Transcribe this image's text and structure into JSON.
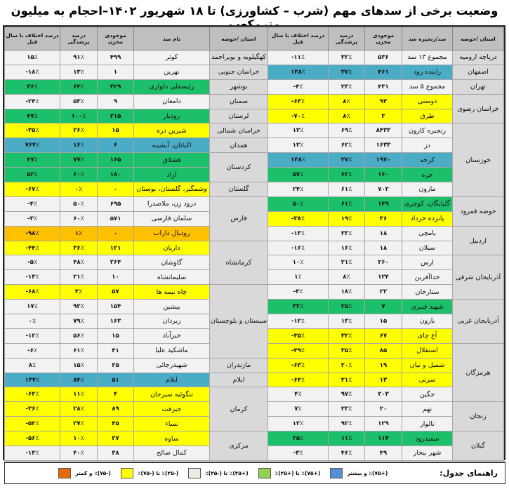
{
  "title": "وضعیت برخی از سدهای مهم (شرب – کشاورزی) تا ۱۸ شهریور ۱۴۰۲–احجام به میلیون مترمکعب",
  "colors": {
    "white": "#f2f2f2",
    "blue": "#4bacc6",
    "green": "#1cc06a",
    "yellow": "#ffff00",
    "orange": "#ffc000",
    "province": "#d9d9d9",
    "header": "#bfbfbf"
  },
  "right_table": {
    "headers": {
      "province": "استان /حوضه",
      "dam": "سد/زنجیره سد",
      "storage": "موجودی مخزن",
      "fill": "درصد پرشدگی",
      "diff": "درصد اختلاف با سال قبل"
    },
    "groups": [
      {
        "province": "دریاچه ارومیه",
        "dams": [
          {
            "name": "مجموع ۱۳ سد",
            "storage": "۵۳۶",
            "fill": "۳۲٪",
            "diff": "-۱۱٪",
            "status": "white"
          }
        ]
      },
      {
        "province": "اصفهان",
        "dams": [
          {
            "name": "زاینده رود",
            "storage": "۴۶۱",
            "fill": "۳۷٪",
            "diff": "۱۳۸٪",
            "status": "blue"
          }
        ]
      },
      {
        "province": "تهران",
        "dams": [
          {
            "name": "مجموع ۵ سد",
            "storage": "۴۳۱",
            "fill": "۲۳٪",
            "diff": "-۴٪",
            "status": "white"
          }
        ]
      },
      {
        "province": "خراسان رضوی",
        "dams": [
          {
            "name": "دوستی",
            "storage": "۹۳",
            "fill": "۸٪",
            "diff": "-۶۳٪",
            "status": "yellow"
          },
          {
            "name": "طرق",
            "storage": "۳",
            "fill": "۸٪",
            "diff": "-۷۰٪",
            "status": "yellow"
          }
        ]
      },
      {
        "province": "خوزستان",
        "dams": [
          {
            "name": "زنجیره کارون",
            "storage": "۸۴۳۳",
            "fill": "۶۹٪",
            "diff": "۱۳٪",
            "status": "white"
          },
          {
            "name": "دز",
            "storage": "۱۶۳۳",
            "fill": "۶۲٪",
            "diff": "۱۲٪",
            "status": "white"
          },
          {
            "name": "کرخه",
            "storage": "۱۹۷۰",
            "fill": "۳۷٪",
            "diff": "۱۴۸٪",
            "status": "blue"
          },
          {
            "name": "جره",
            "storage": "۱۶۰",
            "fill": "۶۲٪",
            "diff": "۵۷٪",
            "status": "green"
          },
          {
            "name": "مارون",
            "storage": "۷۰۲",
            "fill": "۶۱٪",
            "diff": "۲۴٪",
            "status": "white"
          }
        ]
      },
      {
        "province": "حوضه قمرود",
        "dams": [
          {
            "name": "گلپایگان، کوچری",
            "storage": "۱۴۹",
            "fill": "۶۱٪",
            "diff": "۵۰٪",
            "status": "green"
          },
          {
            "name": "پانزده خرداد",
            "storage": "۳۶",
            "fill": "۱۹٪",
            "diff": "-۳۸٪",
            "status": "yellow"
          }
        ]
      },
      {
        "province": "اردبیل",
        "dams": [
          {
            "name": "یامچی",
            "storage": "۱۸",
            "fill": "۲۳٪",
            "diff": "-۱۳٪",
            "status": "white"
          },
          {
            "name": "سبلان",
            "storage": "۱۸",
            "fill": "۱۶٪",
            "diff": "-۱۶٪",
            "status": "white"
          }
        ]
      },
      {
        "province": "آذربایجان شرقی",
        "dams": [
          {
            "name": "ارس",
            "storage": "۲۶۰",
            "fill": "۲۱٪",
            "diff": "۱۰٪",
            "status": "white"
          },
          {
            "name": "خداآفرین",
            "storage": "۱۲۴",
            "fill": "۸٪",
            "diff": "۱٪",
            "status": "white"
          },
          {
            "name": "ستارخان",
            "storage": "۲۲",
            "fill": "۱۸٪",
            "diff": "-۳٪",
            "status": "white"
          }
        ]
      },
      {
        "province": "آذربایجان غربی",
        "dams": [
          {
            "name": "شهید قنبری",
            "storage": "۷",
            "fill": "۲۵٪",
            "diff": "۳۲٪",
            "status": "green"
          },
          {
            "name": "بارون",
            "storage": "۱۵",
            "fill": "۱۳٪",
            "diff": "-۱۲٪",
            "status": "white"
          },
          {
            "name": "آغ چای",
            "storage": "۶۷",
            "fill": "۳۲٪",
            "diff": "-۳۵٪",
            "status": "yellow"
          }
        ]
      },
      {
        "province": "هرمزگان",
        "dams": [
          {
            "name": "استقلال",
            "storage": "۸۵",
            "fill": "۳۵٪",
            "diff": "-۴۹٪",
            "status": "yellow"
          },
          {
            "name": "شمیل و نیان",
            "storage": "۱۹",
            "fill": "۲۰٪",
            "diff": "-۶۳٪",
            "status": "yellow"
          },
          {
            "name": "سرنی",
            "storage": "۱۳",
            "fill": "۲۱٪",
            "diff": "-۶۴٪",
            "status": "yellow"
          },
          {
            "name": "جگین",
            "storage": "۲۰۳",
            "fill": "۹۷٪",
            "diff": "۴٪",
            "status": "white"
          }
        ]
      },
      {
        "province": "زنجان",
        "dams": [
          {
            "name": "تهم",
            "storage": "۲۰",
            "fill": "۲۳٪",
            "diff": "۷٪",
            "status": "white"
          },
          {
            "name": "تالوار",
            "storage": "۱۲۹",
            "fill": "۹۲٪",
            "diff": "۱۲٪",
            "status": "white"
          }
        ]
      },
      {
        "province": "گیلان",
        "dams": [
          {
            "name": "سفیدرود",
            "storage": "۱۱۴",
            "fill": "۱۱٪",
            "diff": "۲۵٪",
            "status": "green"
          },
          {
            "name": "شهر بیجار",
            "storage": "۴۹",
            "fill": "۴۶٪",
            "diff": "-۳٪",
            "status": "white"
          }
        ]
      }
    ]
  },
  "left_table": {
    "headers": {
      "province": "استان /حوضه",
      "dam": "نام سد",
      "storage": "موجودی مخزن",
      "fill": "درصد پرشدگی",
      "diff": "درصد اختلاف با سال قبل"
    },
    "groups": [
      {
        "province": "کهگیلویه و بویراحمد",
        "dams": [
          {
            "name": "کوثر",
            "storage": "۴۹۹",
            "fill": "۹۱٪",
            "diff": "۱۵٪",
            "status": "white"
          }
        ]
      },
      {
        "province": "خراسان جنوبی",
        "dams": [
          {
            "name": "نهرین",
            "storage": "۱",
            "fill": "۱۳٪",
            "diff": "-۱۸٪",
            "status": "white"
          }
        ]
      },
      {
        "province": "بوشهر",
        "dams": [
          {
            "name": "رئیسعلی دلواری",
            "storage": "۴۲۹",
            "fill": "۶۲٪",
            "diff": "۳۶٪",
            "status": "green"
          }
        ]
      },
      {
        "province": "سمنان",
        "dams": [
          {
            "name": "دامغان",
            "storage": "۹",
            "fill": "۵۳٪",
            "diff": "-۲۴٪",
            "status": "white"
          }
        ]
      },
      {
        "province": "لرستان",
        "dams": [
          {
            "name": "رودبار",
            "storage": "۲۱۵",
            "fill": "۱۰۰٪",
            "diff": "۴۷٪",
            "status": "green"
          }
        ]
      },
      {
        "province": "خراسان شمالی",
        "dams": [
          {
            "name": "شیرین دره",
            "storage": "۱۵",
            "fill": "۲۶٪",
            "diff": "-۳۵٪",
            "status": "yellow"
          }
        ]
      },
      {
        "province": "همدان",
        "dams": [
          {
            "name": "اکباتان، آبشینه",
            "storage": "۶",
            "fill": "۱۶٪",
            "diff": "۷۶۴٪",
            "status": "blue"
          }
        ]
      },
      {
        "province": "کردستان",
        "dams": [
          {
            "name": "قشلاق",
            "storage": "۱۶۵",
            "fill": "۷۷٪",
            "diff": "۴۷٪",
            "status": "green"
          },
          {
            "name": "آزاد",
            "storage": "۱۸۰",
            "fill": "۶۰٪",
            "diff": "۵۲٪",
            "status": "green"
          }
        ]
      },
      {
        "province": "گلستان",
        "dams": [
          {
            "name": "وشمگیر، گلستان، بوستان",
            "storage": "۰",
            "fill": "۰٪",
            "diff": "-۶۷٪",
            "status": "yellow"
          }
        ]
      },
      {
        "province": "فارس",
        "dams": [
          {
            "name": "درود زن، ملاصدرا",
            "storage": "۶۹۵",
            "fill": "۵۰٪",
            "diff": "-۴٪",
            "status": "white"
          },
          {
            "name": "سلمان فارسی",
            "storage": "۵۷۱",
            "fill": "۶۰٪",
            "diff": "-۳٪",
            "status": "white"
          },
          {
            "name": "رودبال داراب",
            "storage": "۰",
            "fill": "۱٪",
            "diff": "-۹۸٪",
            "status": "orange"
          }
        ]
      },
      {
        "province": "کرمانشاه",
        "dams": [
          {
            "name": "داریان",
            "storage": "۱۲۱",
            "fill": "۳۶٪",
            "diff": "-۴۴٪",
            "status": "yellow"
          },
          {
            "name": "گاوشان",
            "storage": "۲۶۴",
            "fill": "۴۸٪",
            "diff": "-۵٪",
            "status": "white"
          },
          {
            "name": "سلیمانشاه",
            "storage": "۱۰",
            "fill": "۲۱٪",
            "diff": "-۱۳٪",
            "status": "white"
          }
        ]
      },
      {
        "province": "سیستان و بلوچستان",
        "dams": [
          {
            "name": "چاه نیمه ها",
            "storage": "۵۷",
            "fill": "۴٪",
            "diff": "-۶۸٪",
            "status": "yellow"
          },
          {
            "name": "پیشین",
            "storage": "۱۵۴",
            "fill": "۹۲٪",
            "diff": "۱۷٪",
            "status": "white"
          },
          {
            "name": "زیردان",
            "storage": "۱۶۳",
            "fill": "۷۹٪",
            "diff": "۰٪",
            "status": "white"
          },
          {
            "name": "خیرآباد",
            "storage": "۱۵",
            "fill": "۵۶٪",
            "diff": "-۱۲٪",
            "status": "white"
          },
          {
            "name": "ماشکید علیا",
            "storage": "۴۱",
            "fill": "۶۱٪",
            "diff": "-۶٪",
            "status": "white"
          }
        ]
      },
      {
        "province": "مازندران",
        "dams": [
          {
            "name": "شهیدرجائی",
            "storage": "۲۵",
            "fill": "۱۵٪",
            "diff": "۸٪",
            "status": "white"
          }
        ]
      },
      {
        "province": "ایلام",
        "dams": [
          {
            "name": "ایلام",
            "storage": "۵۱",
            "fill": "۸۴٪",
            "diff": "۱۳۴٪",
            "status": "blue"
          }
        ]
      },
      {
        "province": "کرمان",
        "dams": [
          {
            "name": "تنگوئیه سیرجان",
            "storage": "۴",
            "fill": "۱۱٪",
            "diff": "-۶۲٪",
            "status": "yellow"
          },
          {
            "name": "جیرفت",
            "storage": "۸۹",
            "fill": "۲۸٪",
            "diff": "-۳۶٪",
            "status": "yellow"
          },
          {
            "name": "نساء",
            "storage": "۴۵",
            "fill": "۲۷٪",
            "diff": "-۵۲٪",
            "status": "yellow"
          }
        ]
      },
      {
        "province": "مرکزی",
        "dams": [
          {
            "name": "ساوه",
            "storage": "۲۷",
            "fill": "۱۰٪",
            "diff": "-۵۶٪",
            "status": "yellow"
          },
          {
            "name": "کمال صالح",
            "storage": "۳۸",
            "fill": "۴۰٪",
            "diff": "-۱۳٪",
            "status": "white"
          }
        ]
      }
    ]
  },
  "legend": {
    "title": "راهنمای جدول:",
    "items": [
      {
        "label": "(+۷۵)٪ و بیشتر",
        "color": "#558ed5"
      },
      {
        "label": "(+۷۵)٪ تا (+۲۵)٪",
        "color": "#92d050"
      },
      {
        "label": "(+۲۵)٪ تا (-۲۵)٪",
        "color": "#eeece1"
      },
      {
        "label": "(-۲۵)٪ تا (-۷۵)٪",
        "color": "#ffff00"
      },
      {
        "label": "(-۷۵)٪ و کمتر",
        "color": "#e36c09"
      }
    ]
  }
}
